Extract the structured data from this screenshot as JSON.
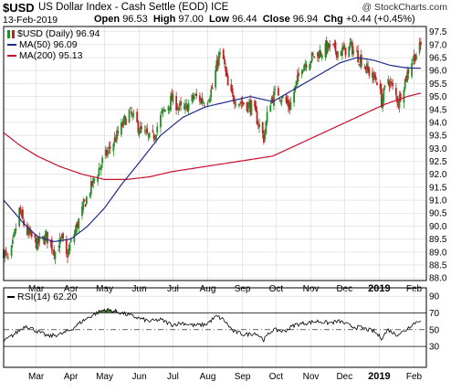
{
  "header": {
    "symbol": "$USD",
    "description": "US Dollar Index - Cash Settle (EOD) ICE",
    "copyright": "@ StockCharts.com",
    "date": "13-Feb-2019",
    "open_label": "Open",
    "open": "96.53",
    "high_label": "High",
    "high": "97.00",
    "low_label": "Low",
    "low": "96.44",
    "close_label": "Close",
    "close": "96.94",
    "chg_label": "Chg",
    "chg": "+0.44 (+0.45%)"
  },
  "legend": {
    "price": "$USD (Daily) 96.94",
    "ma50": "MA(50) 96.09",
    "ma200": "MA(200) 95.13"
  },
  "rsi_legend": "RSI(14) 62.20",
  "colors": {
    "up": "#2b8a2b",
    "down": "#c02020",
    "ma50": "#1f2a8c",
    "ma200": "#c8102e",
    "grid": "#d9d9d9",
    "rsi_line": "#000000",
    "rsi_fill": "#4a7a3a"
  },
  "chart_data": [
    {
      "type": "candlestick",
      "y_ticks": [
        "88.0",
        "88.5",
        "89.0",
        "89.5",
        "90.0",
        "90.5",
        "91.0",
        "91.5",
        "92.0",
        "92.5",
        "93.0",
        "93.5",
        "94.0",
        "94.5",
        "95.0",
        "95.5",
        "96.0",
        "96.5",
        "97.0",
        "97.5"
      ],
      "ylim": [
        87.9,
        97.7
      ],
      "x_ticks": [
        "Mar",
        "Apr",
        "May",
        "Jun",
        "Jul",
        "Aug",
        "Sep",
        "Oct",
        "Nov",
        "Dec",
        "2019",
        "Feb"
      ],
      "x_tick_days": [
        29,
        60,
        90,
        121,
        151,
        182,
        213,
        243,
        274,
        304,
        335,
        366
      ],
      "x_range": [
        0,
        377
      ],
      "price_anchors": [
        [
          0,
          89.0
        ],
        [
          5,
          88.6
        ],
        [
          14,
          90.6
        ],
        [
          20,
          89.8
        ],
        [
          30,
          89.3
        ],
        [
          38,
          89.6
        ],
        [
          46,
          89.0
        ],
        [
          52,
          89.5
        ],
        [
          56,
          88.8
        ],
        [
          62,
          89.6
        ],
        [
          75,
          91.2
        ],
        [
          88,
          92.5
        ],
        [
          100,
          93.4
        ],
        [
          112,
          94.4
        ],
        [
          122,
          93.7
        ],
        [
          132,
          93.3
        ],
        [
          141,
          94.3
        ],
        [
          150,
          94.9
        ],
        [
          160,
          94.4
        ],
        [
          170,
          95.0
        ],
        [
          180,
          94.8
        ],
        [
          186,
          95.3
        ],
        [
          192,
          96.6
        ],
        [
          196,
          96.4
        ],
        [
          201,
          95.1
        ],
        [
          210,
          94.8
        ],
        [
          222,
          94.6
        ],
        [
          232,
          93.4
        ],
        [
          237,
          94.8
        ],
        [
          244,
          95.2
        ],
        [
          255,
          94.6
        ],
        [
          266,
          96.2
        ],
        [
          278,
          96.6
        ],
        [
          290,
          96.9
        ],
        [
          300,
          96.7
        ],
        [
          310,
          96.9
        ],
        [
          317,
          96.5
        ],
        [
          322,
          96.2
        ],
        [
          328,
          95.8
        ],
        [
          334,
          95.6
        ],
        [
          337,
          94.8
        ],
        [
          343,
          95.7
        ],
        [
          348,
          95.2
        ],
        [
          352,
          94.8
        ],
        [
          357,
          95.5
        ],
        [
          364,
          96.4
        ],
        [
          372,
          96.94
        ]
      ],
      "ma50_anchors": [
        [
          0,
          91.0
        ],
        [
          8,
          90.6
        ],
        [
          18,
          90.1
        ],
        [
          30,
          89.6
        ],
        [
          45,
          89.4
        ],
        [
          60,
          89.5
        ],
        [
          75,
          90.0
        ],
        [
          90,
          90.7
        ],
        [
          105,
          91.6
        ],
        [
          120,
          92.4
        ],
        [
          140,
          93.5
        ],
        [
          160,
          94.2
        ],
        [
          180,
          94.6
        ],
        [
          200,
          94.8
        ],
        [
          220,
          95.0
        ],
        [
          240,
          94.8
        ],
        [
          260,
          95.3
        ],
        [
          280,
          95.8
        ],
        [
          300,
          96.3
        ],
        [
          315,
          96.5
        ],
        [
          330,
          96.4
        ],
        [
          345,
          96.2
        ],
        [
          360,
          96.1
        ],
        [
          372,
          96.09
        ]
      ],
      "ma200_anchors": [
        [
          0,
          93.6
        ],
        [
          15,
          93.1
        ],
        [
          30,
          92.7
        ],
        [
          50,
          92.3
        ],
        [
          70,
          92.0
        ],
        [
          90,
          91.8
        ],
        [
          110,
          91.8
        ],
        [
          130,
          91.9
        ],
        [
          150,
          92.1
        ],
        [
          180,
          92.3
        ],
        [
          210,
          92.5
        ],
        [
          240,
          92.7
        ],
        [
          260,
          93.1
        ],
        [
          280,
          93.5
        ],
        [
          300,
          93.9
        ],
        [
          320,
          94.3
        ],
        [
          340,
          94.7
        ],
        [
          360,
          95.0
        ],
        [
          372,
          95.13
        ]
      ]
    },
    {
      "type": "line",
      "title": "RSI(14)",
      "y_ticks": [
        "30",
        "50",
        "70",
        "90"
      ],
      "ylim": [
        5,
        100
      ],
      "bands": [
        30,
        70
      ],
      "midline": 50,
      "rsi_anchors": [
        [
          0,
          36
        ],
        [
          10,
          45
        ],
        [
          20,
          55
        ],
        [
          30,
          48
        ],
        [
          40,
          42
        ],
        [
          52,
          45
        ],
        [
          60,
          50
        ],
        [
          70,
          60
        ],
        [
          80,
          68
        ],
        [
          90,
          74
        ],
        [
          100,
          72
        ],
        [
          110,
          68
        ],
        [
          120,
          64
        ],
        [
          130,
          60
        ],
        [
          140,
          62
        ],
        [
          150,
          56
        ],
        [
          160,
          58
        ],
        [
          170,
          55
        ],
        [
          180,
          56
        ],
        [
          190,
          66
        ],
        [
          196,
          62
        ],
        [
          205,
          48
        ],
        [
          215,
          44
        ],
        [
          225,
          46
        ],
        [
          232,
          38
        ],
        [
          240,
          50
        ],
        [
          250,
          48
        ],
        [
          260,
          56
        ],
        [
          270,
          58
        ],
        [
          280,
          60
        ],
        [
          290,
          58
        ],
        [
          300,
          60
        ],
        [
          310,
          54
        ],
        [
          320,
          52
        ],
        [
          330,
          48
        ],
        [
          337,
          40
        ],
        [
          343,
          50
        ],
        [
          350,
          44
        ],
        [
          357,
          48
        ],
        [
          364,
          56
        ],
        [
          372,
          62.2
        ]
      ]
    }
  ]
}
